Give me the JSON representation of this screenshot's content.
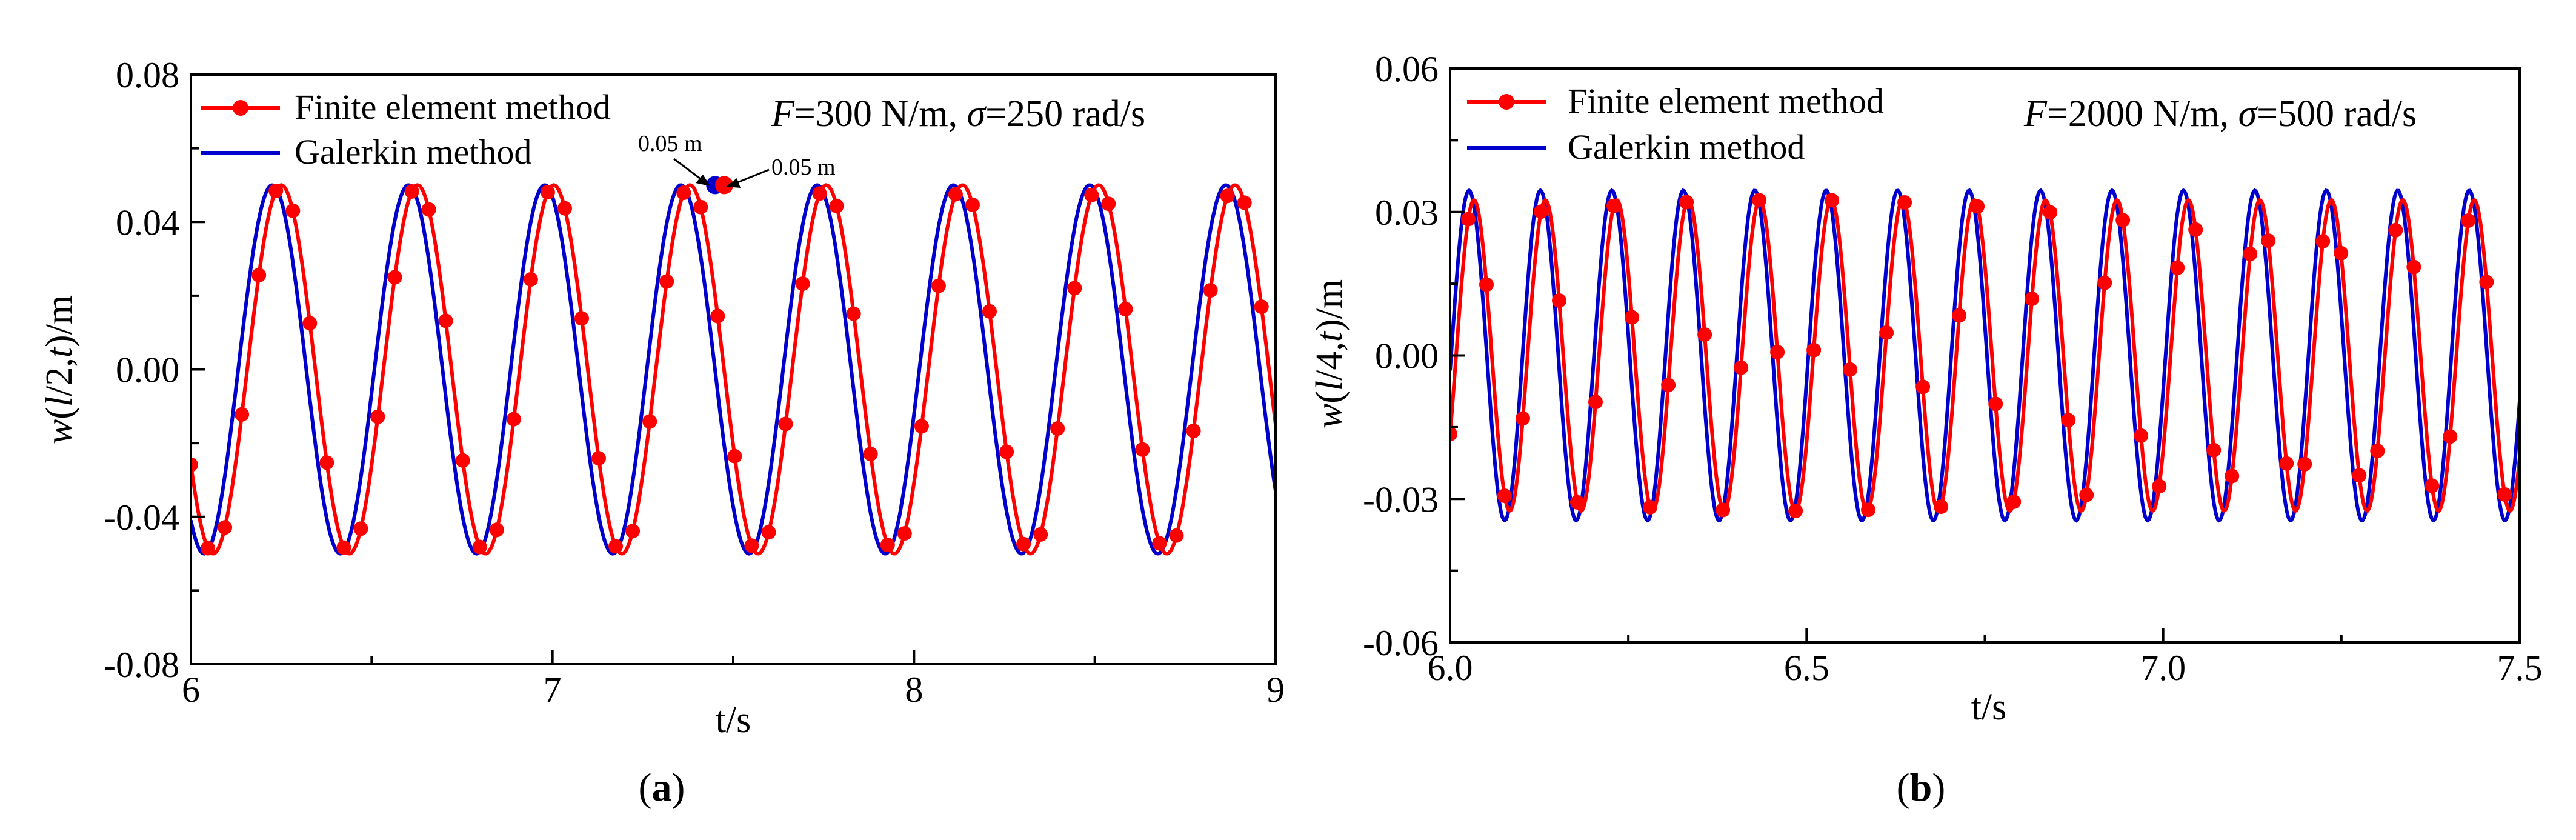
{
  "chart_data": [
    {
      "id": "a",
      "type": "line",
      "caption_letter": "a",
      "xlabel": "t/s",
      "ylabel_parts": [
        "w",
        "(",
        "l",
        "/2,",
        "t",
        ")/m"
      ],
      "xlim": [
        6,
        9
      ],
      "ylim": [
        -0.08,
        0.08
      ],
      "xticks": [
        6,
        7,
        8,
        9
      ],
      "xtick_labels": [
        "6",
        "7",
        "8",
        "9"
      ],
      "yticks": [
        -0.08,
        -0.04,
        0.0,
        0.04,
        0.08
      ],
      "ytick_labels": [
        "-0.08",
        "-0.04",
        "0.00",
        "0.04",
        "0.08"
      ],
      "condition": {
        "f_symbol": "F",
        "f_text": "=300 N/m, ",
        "s_symbol": "σ",
        "s_text": "=250 rad/s"
      },
      "series": [
        {
          "name": "Finite element method",
          "color": "#ff0000",
          "marker": "circle",
          "amplitude": 0.05,
          "period": 0.3768,
          "phase": 0.25,
          "t_start": 6,
          "t_end": 9,
          "marker_step": 0.047
        },
        {
          "name": "Galerkin method",
          "color": "#0000cc",
          "marker": "none",
          "amplitude": 0.05,
          "period": 0.3768,
          "phase": 0.225,
          "t_start": 6,
          "t_end": 9
        }
      ],
      "annotations": [
        {
          "text": "0.05 m",
          "x": 7.45,
          "y": 0.05,
          "series": "Galerkin method"
        },
        {
          "text": "0.05 m",
          "x": 7.475,
          "y": 0.05,
          "series": "Finite element method"
        }
      ]
    },
    {
      "id": "b",
      "type": "line",
      "caption_letter": "b",
      "xlabel": "t/s",
      "ylabel_parts": [
        "w",
        "(",
        "l",
        "/4,",
        "t",
        ")/m"
      ],
      "xlim": [
        6.0,
        7.5
      ],
      "ylim": [
        -0.06,
        0.06
      ],
      "xticks": [
        6.0,
        6.5,
        7.0,
        7.5
      ],
      "xtick_labels": [
        "6.0",
        "6.5",
        "7.0",
        "7.5"
      ],
      "yticks": [
        -0.06,
        -0.03,
        0.0,
        0.03,
        0.06
      ],
      "ytick_labels": [
        "-0.06",
        "-0.03",
        "0.00",
        "0.03",
        "0.06"
      ],
      "condition": {
        "f_symbol": "F",
        "f_text": "=2000 N/m, ",
        "s_symbol": "σ",
        "s_text": "=500 rad/s"
      },
      "series": [
        {
          "name": "Finite element method",
          "color": "#ff0000",
          "marker": "circle",
          "amplitude": 0.0325,
          "period": 0.1002,
          "phase": 0.0335,
          "t_start": 6.0,
          "t_end": 7.5,
          "marker_step": 0.0255
        },
        {
          "name": "Galerkin method",
          "color": "#0000cc",
          "marker": "none",
          "amplitude": 0.0345,
          "period": 0.1002,
          "phase": 0.0265,
          "t_start": 6.0,
          "t_end": 7.5
        }
      ],
      "annotations": []
    }
  ]
}
